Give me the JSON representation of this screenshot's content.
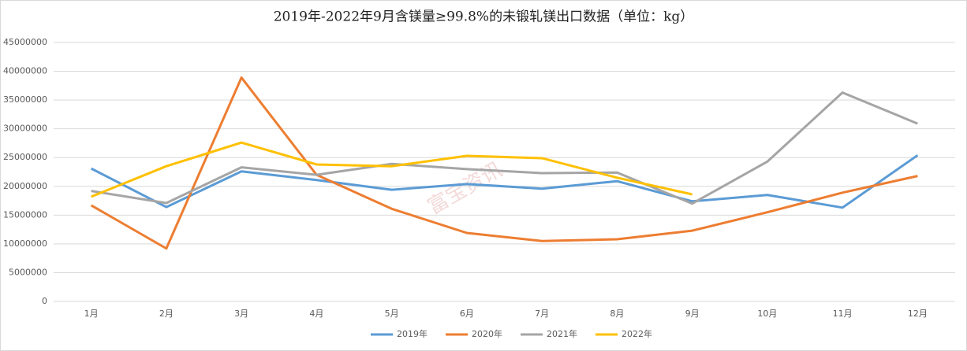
{
  "chart_data": {
    "type": "line",
    "title": "2019年-2022年9月含镁量≥99.8%的未锻轧镁出口数据（单位：kg）",
    "watermark": "富宝资讯",
    "categories": [
      "1月",
      "2月",
      "3月",
      "4月",
      "5月",
      "6月",
      "7月",
      "8月",
      "9月",
      "10月",
      "11月",
      "12月"
    ],
    "series": [
      {
        "name": "2019年",
        "color": "#5b9bd5",
        "values": [
          23100000,
          16400000,
          22600000,
          21100000,
          19400000,
          20400000,
          19600000,
          20900000,
          17400000,
          18500000,
          16300000,
          25400000
        ]
      },
      {
        "name": "2020年",
        "color": "#ed7d31",
        "values": [
          16700000,
          9200000,
          38900000,
          22000000,
          16100000,
          11900000,
          10500000,
          10800000,
          12300000,
          15500000,
          18900000,
          21800000
        ]
      },
      {
        "name": "2021年",
        "color": "#a5a5a5",
        "values": [
          19200000,
          17100000,
          23300000,
          22000000,
          23900000,
          23000000,
          22300000,
          22400000,
          17000000,
          24300000,
          36300000,
          30900000
        ]
      },
      {
        "name": "2022年",
        "color": "#ffc000",
        "values": [
          18200000,
          23500000,
          27600000,
          23800000,
          23500000,
          25300000,
          24900000,
          21500000,
          18600000,
          null,
          null,
          null
        ]
      }
    ],
    "ylim": [
      0,
      45000000
    ],
    "yticks": [
      0,
      5000000,
      10000000,
      15000000,
      20000000,
      25000000,
      30000000,
      35000000,
      40000000,
      45000000
    ],
    "grid": true,
    "legend": "bottom"
  }
}
